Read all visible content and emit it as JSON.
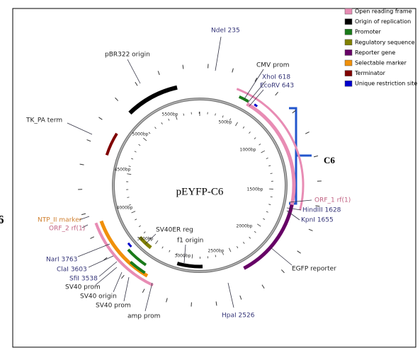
{
  "title": "pEYFP-C6",
  "bracket_label": "C6",
  "edge_label": "6",
  "legend": [
    {
      "label": "Open reading frame",
      "color": "#e88cb4"
    },
    {
      "label": "Origin of replication",
      "color": "#000000"
    },
    {
      "label": "Promoter",
      "color": "#1a7a1a"
    },
    {
      "label": "Regulatory sequence",
      "color": "#808000"
    },
    {
      "label": "Reporter gene",
      "color": "#660066"
    },
    {
      "label": "Selectable marker",
      "color": "#f0900a"
    },
    {
      "label": "Terminator",
      "color": "#800000"
    },
    {
      "label": "Unique restriction site",
      "color": "#0000cc"
    }
  ],
  "scale_labels": [
    "500bp",
    "1000bp",
    "1500bp",
    "2000bp",
    "2500bp",
    "3000bp",
    "3500bp",
    "4000bp",
    "4500bp",
    "5000bp",
    "5500bp"
  ],
  "labels": [
    "NdeI 235",
    "CMV prom",
    "XhoI 618",
    "EcoRV 643",
    "pBR322 origin",
    "TK_PA term",
    "ORF_1 rf(1)",
    "HindIII 1628",
    "KpnI 1655",
    "EGFP reporter",
    "HpaI 2526",
    "f1 origin",
    "SV40ER reg",
    "amp prom",
    "SV40 prom",
    "SfiI 3538",
    "ClaI 3603",
    "NarI 3763",
    "SV40 origin",
    "SV40 prom",
    "NTP_II marker",
    "ORF_2 rf(1)"
  ]
}
